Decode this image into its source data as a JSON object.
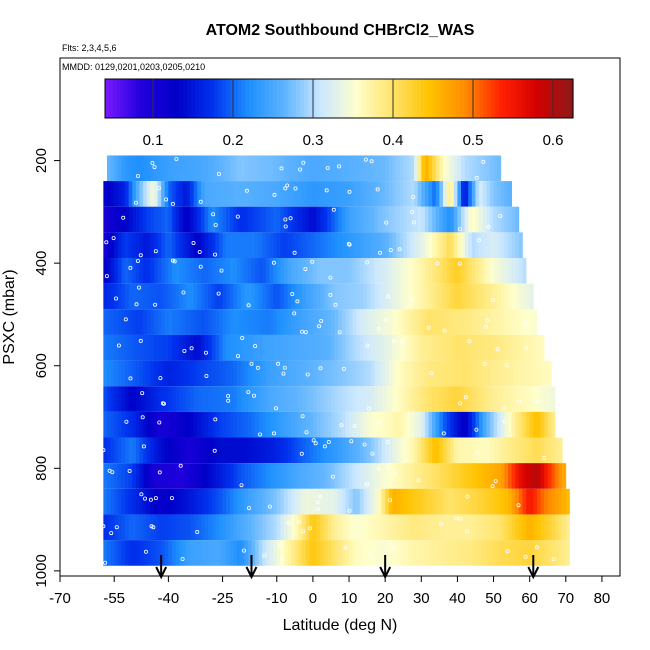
{
  "chart_data": {
    "type": "heatmap",
    "title": "ATOM2 Southbound CHBrCl2_WAS",
    "subtitle_flights": "Flts: 2,3,4,5,6",
    "subtitle_dates": "MMDD: 0129,0201,0203,0205,0210",
    "xlabel": "Latitude (deg N)",
    "ylabel": "PSXC (mbar)",
    "xlim": [
      -70,
      85
    ],
    "ylim": [
      1010,
      0
    ],
    "x_ticks": [
      -70,
      -55,
      -40,
      -25,
      -10,
      0,
      10,
      20,
      30,
      40,
      50,
      60,
      70,
      80
    ],
    "x_tick_labels": [
      "-70",
      "-55",
      "-40",
      "-25",
      "-10",
      "0",
      "10",
      "20",
      "30",
      "40",
      "50",
      "60",
      "70",
      "80"
    ],
    "y_ticks": [
      200,
      400,
      600,
      800,
      1000
    ],
    "y_tick_labels": [
      "200",
      "400",
      "600",
      "800",
      "1000"
    ],
    "colorbar": {
      "range": [
        0.04,
        0.625
      ],
      "ticks": [
        0.1,
        0.2,
        0.3,
        0.4,
        0.5,
        0.6
      ],
      "tick_labels": [
        "0.1",
        "0.2",
        "0.3",
        "0.4",
        "0.5",
        "0.6"
      ],
      "colors": [
        "#7a1aff",
        "#2200dd",
        "#0000c8",
        "#0033ee",
        "#1e90ff",
        "#5fb4ff",
        "#cce8ff",
        "#ffffcc",
        "#ffe36a",
        "#ffc300",
        "#ff8c00",
        "#ff2200",
        "#d40000",
        "#8b1a1a"
      ]
    },
    "arrows_x": [
      -42,
      -17,
      20,
      61
    ],
    "rows": [
      {
        "p": 215,
        "x0": -57,
        "x1": 52,
        "values": [
          [
            -57,
            0.27
          ],
          [
            -52,
            0.23
          ],
          [
            -48,
            0.22
          ],
          [
            -40,
            0.24
          ],
          [
            -30,
            0.25
          ],
          [
            -20,
            0.28
          ],
          [
            -10,
            0.27
          ],
          [
            0,
            0.25
          ],
          [
            10,
            0.26
          ],
          [
            20,
            0.27
          ],
          [
            28,
            0.3
          ],
          [
            31,
            0.47
          ],
          [
            36,
            0.36
          ],
          [
            42,
            0.3
          ],
          [
            52,
            0.27
          ]
        ]
      },
      {
        "p": 265,
        "x0": -58,
        "x1": 55,
        "values": [
          [
            -58,
            0.12
          ],
          [
            -52,
            0.16
          ],
          [
            -48,
            0.27
          ],
          [
            -44,
            0.35
          ],
          [
            -40,
            0.2
          ],
          [
            -35,
            0.15
          ],
          [
            -30,
            0.25
          ],
          [
            -20,
            0.26
          ],
          [
            -10,
            0.25
          ],
          [
            0,
            0.23
          ],
          [
            10,
            0.24
          ],
          [
            20,
            0.27
          ],
          [
            28,
            0.3
          ],
          [
            34,
            0.2
          ],
          [
            38,
            0.4
          ],
          [
            42,
            0.14
          ],
          [
            46,
            0.32
          ],
          [
            50,
            0.28
          ],
          [
            55,
            0.26
          ]
        ]
      },
      {
        "p": 315,
        "x0": -58,
        "x1": 57,
        "values": [
          [
            -58,
            0.1
          ],
          [
            -52,
            0.13
          ],
          [
            -46,
            0.18
          ],
          [
            -40,
            0.2
          ],
          [
            -35,
            0.12
          ],
          [
            -28,
            0.22
          ],
          [
            -20,
            0.17
          ],
          [
            -10,
            0.2
          ],
          [
            0,
            0.14
          ],
          [
            10,
            0.24
          ],
          [
            20,
            0.28
          ],
          [
            30,
            0.31
          ],
          [
            38,
            0.22
          ],
          [
            44,
            0.36
          ],
          [
            50,
            0.3
          ],
          [
            57,
            0.27
          ]
        ]
      },
      {
        "p": 365,
        "x0": -58,
        "x1": 58,
        "values": [
          [
            -58,
            0.1
          ],
          [
            -52,
            0.18
          ],
          [
            -46,
            0.15
          ],
          [
            -40,
            0.2
          ],
          [
            -32,
            0.13
          ],
          [
            -24,
            0.21
          ],
          [
            -16,
            0.21
          ],
          [
            -8,
            0.18
          ],
          [
            0,
            0.2
          ],
          [
            10,
            0.23
          ],
          [
            20,
            0.26
          ],
          [
            30,
            0.33
          ],
          [
            38,
            0.41
          ],
          [
            44,
            0.3
          ],
          [
            50,
            0.32
          ],
          [
            58,
            0.28
          ]
        ]
      },
      {
        "p": 415,
        "x0": -58,
        "x1": 59,
        "values": [
          [
            -58,
            0.12
          ],
          [
            -52,
            0.2
          ],
          [
            -46,
            0.17
          ],
          [
            -38,
            0.22
          ],
          [
            -30,
            0.2
          ],
          [
            -22,
            0.22
          ],
          [
            -14,
            0.19
          ],
          [
            -6,
            0.25
          ],
          [
            2,
            0.28
          ],
          [
            10,
            0.28
          ],
          [
            20,
            0.32
          ],
          [
            30,
            0.37
          ],
          [
            40,
            0.43
          ],
          [
            50,
            0.35
          ],
          [
            59,
            0.3
          ]
        ]
      },
      {
        "p": 465,
        "x0": -58,
        "x1": 61,
        "values": [
          [
            -58,
            0.16
          ],
          [
            -50,
            0.2
          ],
          [
            -42,
            0.19
          ],
          [
            -34,
            0.22
          ],
          [
            -26,
            0.18
          ],
          [
            -18,
            0.23
          ],
          [
            -10,
            0.19
          ],
          [
            -2,
            0.24
          ],
          [
            6,
            0.28
          ],
          [
            14,
            0.29
          ],
          [
            22,
            0.33
          ],
          [
            30,
            0.37
          ],
          [
            40,
            0.42
          ],
          [
            50,
            0.38
          ],
          [
            61,
            0.33
          ]
        ]
      },
      {
        "p": 515,
        "x0": -58,
        "x1": 62,
        "values": [
          [
            -58,
            0.2
          ],
          [
            -48,
            0.18
          ],
          [
            -40,
            0.21
          ],
          [
            -30,
            0.19
          ],
          [
            -22,
            0.22
          ],
          [
            -12,
            0.21
          ],
          [
            -4,
            0.24
          ],
          [
            6,
            0.27
          ],
          [
            14,
            0.32
          ],
          [
            22,
            0.35
          ],
          [
            32,
            0.4
          ],
          [
            42,
            0.39
          ],
          [
            52,
            0.37
          ],
          [
            62,
            0.35
          ]
        ]
      },
      {
        "p": 565,
        "x0": -58,
        "x1": 64,
        "values": [
          [
            -58,
            0.21
          ],
          [
            -48,
            0.19
          ],
          [
            -40,
            0.18
          ],
          [
            -32,
            0.14
          ],
          [
            -24,
            0.22
          ],
          [
            -14,
            0.24
          ],
          [
            -6,
            0.25
          ],
          [
            4,
            0.26
          ],
          [
            12,
            0.3
          ],
          [
            20,
            0.33
          ],
          [
            30,
            0.38
          ],
          [
            40,
            0.4
          ],
          [
            50,
            0.39
          ],
          [
            64,
            0.36
          ]
        ]
      },
      {
        "p": 615,
        "x0": -58,
        "x1": 66,
        "values": [
          [
            -58,
            0.22
          ],
          [
            -48,
            0.19
          ],
          [
            -40,
            0.16
          ],
          [
            -32,
            0.18
          ],
          [
            -22,
            0.2
          ],
          [
            -12,
            0.24
          ],
          [
            -2,
            0.26
          ],
          [
            8,
            0.28
          ],
          [
            16,
            0.3
          ],
          [
            24,
            0.36
          ],
          [
            32,
            0.39
          ],
          [
            42,
            0.4
          ],
          [
            52,
            0.38
          ],
          [
            66,
            0.36
          ]
        ]
      },
      {
        "p": 665,
        "x0": -58,
        "x1": 67,
        "values": [
          [
            -58,
            0.19
          ],
          [
            -50,
            0.13
          ],
          [
            -42,
            0.17
          ],
          [
            -32,
            0.2
          ],
          [
            -22,
            0.21
          ],
          [
            -12,
            0.25
          ],
          [
            -2,
            0.27
          ],
          [
            8,
            0.3
          ],
          [
            16,
            0.32
          ],
          [
            24,
            0.36
          ],
          [
            32,
            0.4
          ],
          [
            40,
            0.42
          ],
          [
            50,
            0.38
          ],
          [
            60,
            0.36
          ],
          [
            67,
            0.34
          ]
        ]
      },
      {
        "p": 715,
        "x0": -58,
        "x1": 67,
        "values": [
          [
            -58,
            0.2
          ],
          [
            -50,
            0.17
          ],
          [
            -42,
            0.1
          ],
          [
            -34,
            0.13
          ],
          [
            -26,
            0.18
          ],
          [
            -18,
            0.2
          ],
          [
            -10,
            0.23
          ],
          [
            -2,
            0.26
          ],
          [
            8,
            0.3
          ],
          [
            16,
            0.35
          ],
          [
            24,
            0.37
          ],
          [
            30,
            0.33
          ],
          [
            36,
            0.2
          ],
          [
            42,
            0.12
          ],
          [
            48,
            0.26
          ],
          [
            56,
            0.38
          ],
          [
            62,
            0.45
          ],
          [
            67,
            0.38
          ]
        ]
      },
      {
        "p": 765,
        "x0": -58,
        "x1": 69,
        "values": [
          [
            -58,
            0.17
          ],
          [
            -50,
            0.21
          ],
          [
            -42,
            0.14
          ],
          [
            -34,
            0.1
          ],
          [
            -26,
            0.14
          ],
          [
            -18,
            0.14
          ],
          [
            -10,
            0.16
          ],
          [
            -2,
            0.2
          ],
          [
            8,
            0.24
          ],
          [
            16,
            0.28
          ],
          [
            22,
            0.33
          ],
          [
            28,
            0.37
          ],
          [
            34,
            0.45
          ],
          [
            40,
            0.37
          ],
          [
            48,
            0.36
          ],
          [
            56,
            0.39
          ],
          [
            62,
            0.41
          ],
          [
            69,
            0.38
          ]
        ]
      },
      {
        "p": 815,
        "x0": -58,
        "x1": 70,
        "values": [
          [
            -58,
            0.21
          ],
          [
            -50,
            0.18
          ],
          [
            -44,
            0.1
          ],
          [
            -36,
            0.09
          ],
          [
            -28,
            0.14
          ],
          [
            -20,
            0.19
          ],
          [
            -12,
            0.22
          ],
          [
            -4,
            0.25
          ],
          [
            4,
            0.27
          ],
          [
            12,
            0.31
          ],
          [
            20,
            0.35
          ],
          [
            28,
            0.38
          ],
          [
            36,
            0.41
          ],
          [
            44,
            0.44
          ],
          [
            52,
            0.47
          ],
          [
            58,
            0.57
          ],
          [
            62,
            0.6
          ],
          [
            66,
            0.52
          ],
          [
            70,
            0.46
          ]
        ]
      },
      {
        "p": 865,
        "x0": -58,
        "x1": 71,
        "values": [
          [
            -58,
            0.21
          ],
          [
            -50,
            0.17
          ],
          [
            -42,
            0.12
          ],
          [
            -34,
            0.15
          ],
          [
            -26,
            0.19
          ],
          [
            -18,
            0.24
          ],
          [
            -10,
            0.28
          ],
          [
            -2,
            0.34
          ],
          [
            6,
            0.33
          ],
          [
            12,
            0.28
          ],
          [
            18,
            0.35
          ],
          [
            22,
            0.46
          ],
          [
            30,
            0.43
          ],
          [
            38,
            0.4
          ],
          [
            46,
            0.42
          ],
          [
            54,
            0.45
          ],
          [
            60,
            0.55
          ],
          [
            64,
            0.5
          ],
          [
            71,
            0.45
          ]
        ]
      },
      {
        "p": 915,
        "x0": -58,
        "x1": 71,
        "values": [
          [
            -58,
            0.17
          ],
          [
            -50,
            0.2
          ],
          [
            -42,
            0.18
          ],
          [
            -34,
            0.19
          ],
          [
            -26,
            0.22
          ],
          [
            -18,
            0.26
          ],
          [
            -10,
            0.3
          ],
          [
            -4,
            0.37
          ],
          [
            0,
            0.44
          ],
          [
            6,
            0.38
          ],
          [
            12,
            0.35
          ],
          [
            20,
            0.37
          ],
          [
            28,
            0.39
          ],
          [
            36,
            0.38
          ],
          [
            44,
            0.38
          ],
          [
            52,
            0.4
          ],
          [
            60,
            0.46
          ],
          [
            66,
            0.42
          ],
          [
            71,
            0.38
          ]
        ]
      },
      {
        "p": 965,
        "x0": -58,
        "x1": 71,
        "values": [
          [
            -58,
            0.21
          ],
          [
            -50,
            0.17
          ],
          [
            -42,
            0.19
          ],
          [
            -34,
            0.24
          ],
          [
            -26,
            0.25
          ],
          [
            -20,
            0.22
          ],
          [
            -14,
            0.3
          ],
          [
            -8,
            0.36
          ],
          [
            0,
            0.44
          ],
          [
            6,
            0.4
          ],
          [
            12,
            0.36
          ],
          [
            20,
            0.35
          ],
          [
            28,
            0.37
          ],
          [
            36,
            0.38
          ],
          [
            44,
            0.39
          ],
          [
            52,
            0.41
          ],
          [
            60,
            0.42
          ],
          [
            66,
            0.4
          ],
          [
            71,
            0.38
          ]
        ]
      }
    ]
  }
}
